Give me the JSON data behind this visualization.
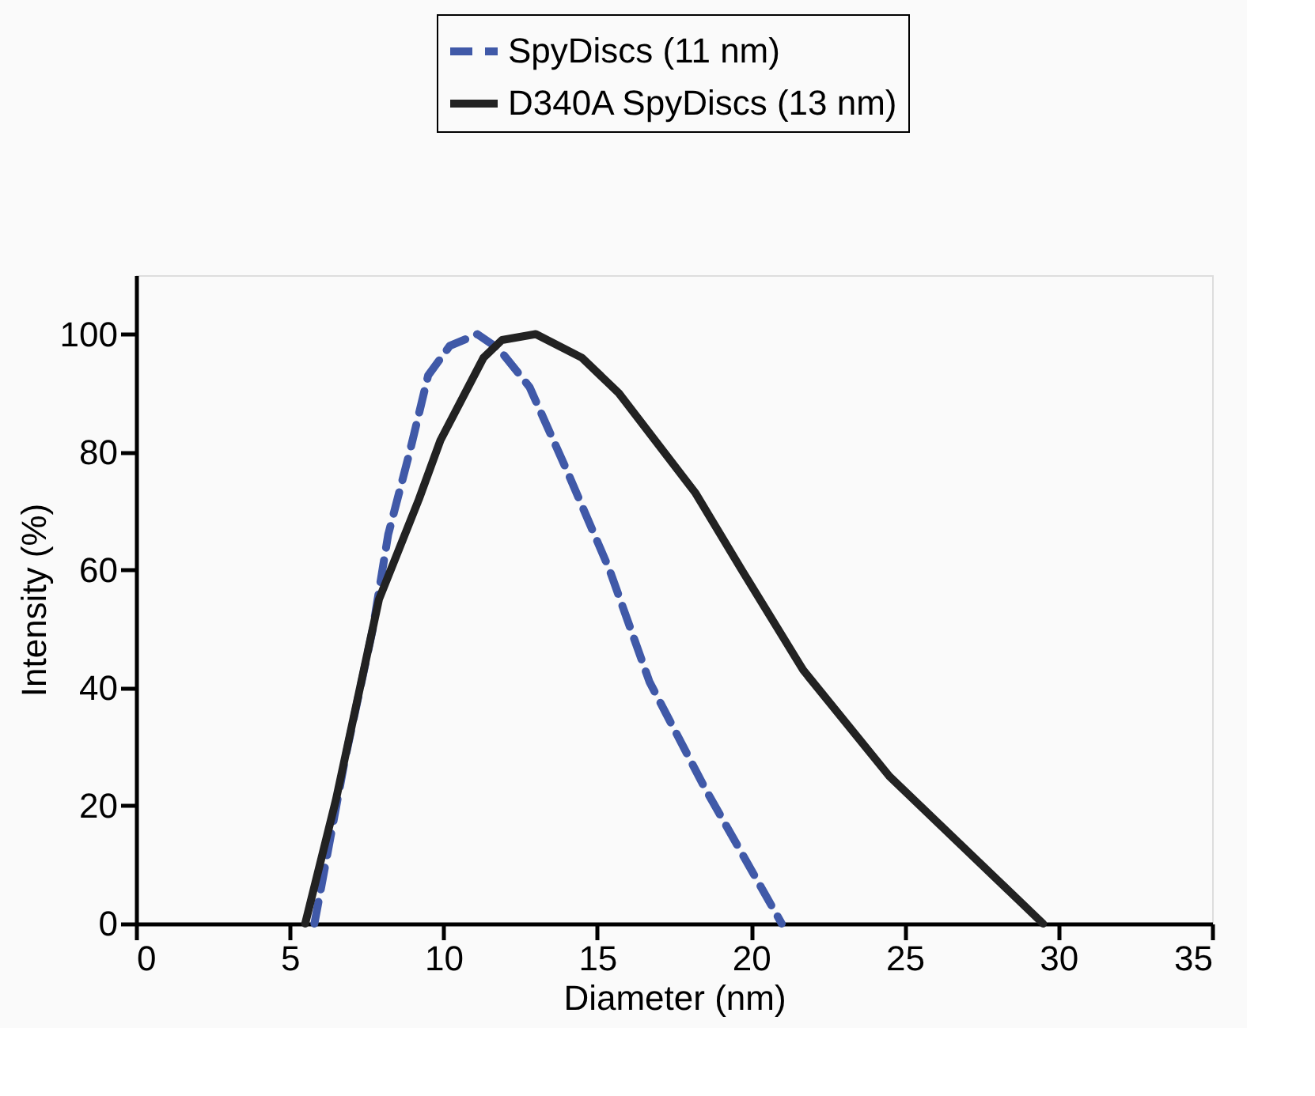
{
  "chart_data": {
    "type": "line",
    "xlabel": "Diameter (nm)",
    "ylabel": "Intensity (%)",
    "xlim": [
      0,
      35
    ],
    "xticks": [
      0,
      5,
      10,
      15,
      20,
      25,
      30,
      35
    ],
    "ylim": [
      0,
      110
    ],
    "yticks": [
      0,
      20,
      40,
      60,
      80,
      100
    ],
    "grid": false,
    "legend": "top",
    "marker": "none",
    "series": [
      {
        "name": "SpyDiscs (11 nm)",
        "color": "#4059a8",
        "line_style": "dashed",
        "x": [
          5.8,
          6.8,
          7.7,
          8.2,
          8.9,
          9.5,
          10.2,
          11.1,
          11.8,
          12.8,
          14.0,
          15.4,
          16.7,
          18.5,
          21.0
        ],
        "values": [
          0,
          28,
          50,
          66,
          80,
          93,
          98,
          100,
          97.5,
          91,
          77,
          60,
          41,
          23,
          0
        ]
      },
      {
        "name": "D340A SpyDiscs (13 nm)",
        "color": "#222222",
        "line_style": "solid",
        "x": [
          5.5,
          6.5,
          7.9,
          9.2,
          9.9,
          11.3,
          11.9,
          13.0,
          14.5,
          15.7,
          18.2,
          19.7,
          21.7,
          24.5,
          29.5
        ],
        "values": [
          0,
          21,
          55,
          72,
          82,
          96,
          99,
          100,
          96,
          90,
          73,
          60,
          43,
          25,
          0
        ]
      }
    ]
  }
}
